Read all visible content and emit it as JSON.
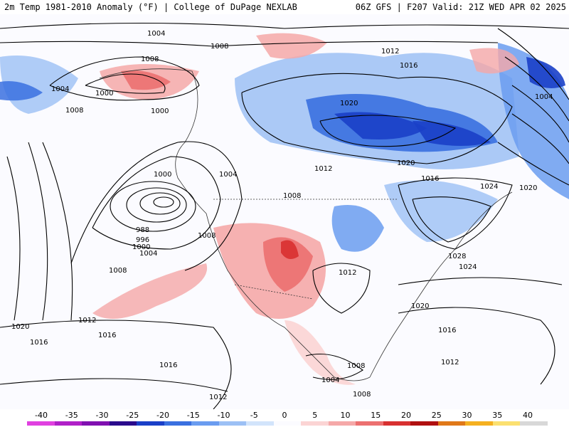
{
  "header": {
    "left_text": "2m Temp 1981-2010 Anomaly (°F) | College of DuPage NEXLAB",
    "right_text": "06Z GFS | F207 Valid: 21Z WED APR 02 2025"
  },
  "isobar_labels": [
    "1004",
    "1008",
    "1008",
    "1012",
    "1016",
    "1000",
    "1004",
    "1008",
    "1000",
    "1020",
    "1004",
    "1020",
    "1012",
    "1000",
    "1004",
    "1016",
    "1024",
    "1020",
    "1008",
    "988",
    "996",
    "1000",
    "1004",
    "1008",
    "1012",
    "1028",
    "1024",
    "1008",
    "1012",
    "1016",
    "1020",
    "1020",
    "1016",
    "1016",
    "1012",
    "1008",
    "1004",
    "1012",
    "1008",
    "1012"
  ],
  "colorbar": {
    "tick_labels": [
      "-40",
      "-35",
      "-30",
      "-25",
      "-20",
      "-15",
      "-10",
      "-5",
      "0",
      "5",
      "10",
      "15",
      "20",
      "25",
      "30",
      "35",
      "40"
    ],
    "colors": [
      "#e040e0",
      "#b020c8",
      "#8010b0",
      "#2a0a8c",
      "#1a3fc8",
      "#3a70e0",
      "#6a9cf0",
      "#9cc0f5",
      "#d2e4fb",
      "#fbfbff",
      "#fbd4d4",
      "#f5a8a8",
      "#ec7070",
      "#d83030",
      "#b01010",
      "#e07818",
      "#f5b020",
      "#fbe070",
      "#d8d8d8"
    ]
  }
}
